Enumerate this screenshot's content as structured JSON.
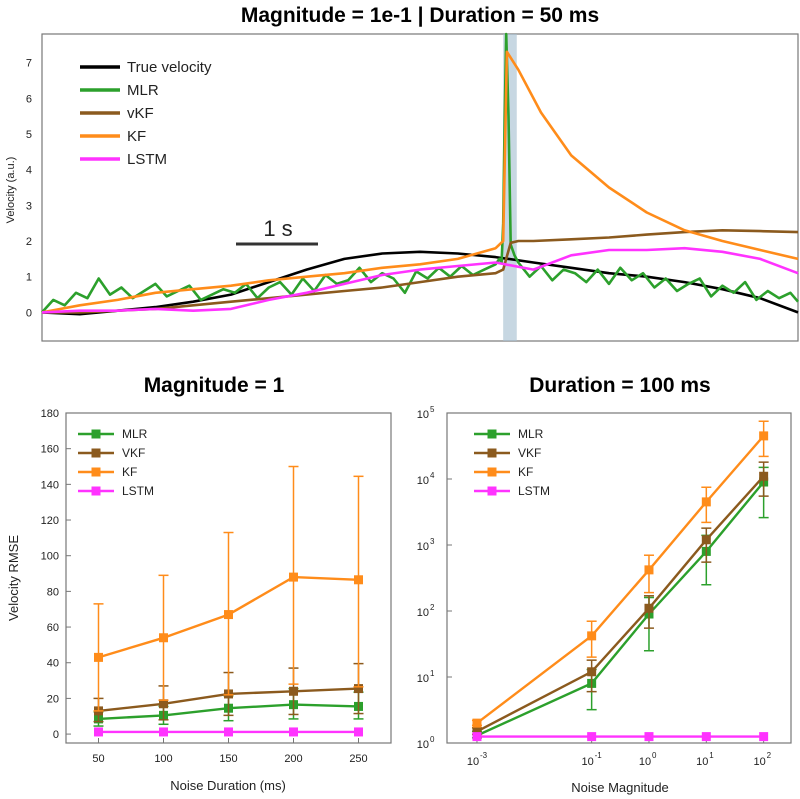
{
  "chart_data": [
    {
      "type": "line",
      "title": "Magnitude = 1e-1 | Duration = 50 ms",
      "ylabel": "Velocity (a.u.)",
      "xlabel": "",
      "ylim": [
        -0.8,
        7.8
      ],
      "xlim": [
        0,
        10
      ],
      "yticks": [
        "0",
        "1",
        "2",
        "3",
        "4",
        "5",
        "6",
        "7"
      ],
      "scalebar_label": "1 s",
      "noise_window": [
        6.1,
        6.28
      ],
      "legend_position": "top-left",
      "series": [
        {
          "name": "True velocity",
          "color": "#000000",
          "x": [
            0,
            0.5,
            1,
            1.5,
            2,
            2.5,
            3,
            3.5,
            4,
            4.5,
            5,
            5.5,
            6,
            6.5,
            7,
            7.5,
            8,
            8.5,
            9,
            9.5,
            10
          ],
          "values": [
            0,
            -0.05,
            0.05,
            0.15,
            0.3,
            0.5,
            0.85,
            1.2,
            1.5,
            1.65,
            1.7,
            1.65,
            1.55,
            1.4,
            1.25,
            1.1,
            1.0,
            0.85,
            0.65,
            0.4,
            0
          ]
        },
        {
          "name": "MLR",
          "color": "#2ca02c",
          "x": [
            0,
            0.15,
            0.3,
            0.45,
            0.6,
            0.75,
            0.9,
            1.05,
            1.2,
            1.35,
            1.5,
            1.65,
            1.8,
            1.95,
            2.1,
            2.25,
            2.4,
            2.55,
            2.7,
            2.85,
            3.0,
            3.15,
            3.3,
            3.45,
            3.6,
            3.75,
            3.9,
            4.05,
            4.2,
            4.35,
            4.5,
            4.65,
            4.8,
            4.95,
            5.1,
            5.25,
            5.4,
            5.55,
            5.7,
            5.85,
            6.0,
            6.05,
            6.08,
            6.1,
            6.12,
            6.14,
            6.17,
            6.2,
            6.25,
            6.3,
            6.45,
            6.6,
            6.75,
            6.9,
            7.05,
            7.2,
            7.35,
            7.5,
            7.65,
            7.8,
            7.95,
            8.1,
            8.25,
            8.4,
            8.55,
            8.7,
            8.85,
            9.0,
            9.15,
            9.3,
            9.45,
            9.6,
            9.75,
            9.9,
            10
          ],
          "values": [
            0,
            0.35,
            0.2,
            0.55,
            0.4,
            0.95,
            0.5,
            0.7,
            0.4,
            0.6,
            0.8,
            0.45,
            0.6,
            0.75,
            0.35,
            0.5,
            0.65,
            0.55,
            0.8,
            0.4,
            0.7,
            0.85,
            0.5,
            0.95,
            0.6,
            1.05,
            0.8,
            0.9,
            1.25,
            0.85,
            1.1,
            0.95,
            0.55,
            1.15,
            0.95,
            1.25,
            1.0,
            1.3,
            1.05,
            1.2,
            1.35,
            1.5,
            1.4,
            2.5,
            5.5,
            7.8,
            5.5,
            1.9,
            1.6,
            1.4,
            1.0,
            1.3,
            0.9,
            1.2,
            1.1,
            0.85,
            1.2,
            0.8,
            1.25,
            0.9,
            1.1,
            0.7,
            0.95,
            0.6,
            0.8,
            0.95,
            0.45,
            0.75,
            0.55,
            0.85,
            0.35,
            0.6,
            0.4,
            0.55,
            0.3
          ]
        },
        {
          "name": "vKF",
          "color": "#8b5a1e",
          "x": [
            0,
            0.5,
            1,
            1.5,
            2,
            2.5,
            3,
            3.5,
            4,
            4.5,
            5,
            5.5,
            6,
            6.1,
            6.2,
            6.3,
            6.5,
            7,
            7.5,
            8,
            8.5,
            9,
            9.5,
            10
          ],
          "values": [
            0,
            0,
            0.05,
            0.1,
            0.2,
            0.3,
            0.4,
            0.5,
            0.6,
            0.7,
            0.85,
            1.0,
            1.1,
            1.2,
            1.95,
            2.0,
            2.0,
            2.05,
            2.1,
            2.18,
            2.25,
            2.3,
            2.28,
            2.25
          ]
        },
        {
          "name": "KF",
          "color": "#ff8c1a",
          "x": [
            0,
            0.5,
            1,
            1.5,
            2,
            2.5,
            3,
            3.5,
            4,
            4.5,
            5,
            5.5,
            6,
            6.1,
            6.15,
            6.3,
            6.6,
            7,
            7.5,
            8,
            8.5,
            9,
            9.5,
            10
          ],
          "values": [
            0,
            0.2,
            0.35,
            0.55,
            0.65,
            0.75,
            0.9,
            1.0,
            1.1,
            1.25,
            1.35,
            1.5,
            1.8,
            2.0,
            7.3,
            6.8,
            5.6,
            4.4,
            3.5,
            2.8,
            2.3,
            2.0,
            1.75,
            1.5
          ]
        },
        {
          "name": "LSTM",
          "color": "#ff33ff",
          "x": [
            0,
            0.5,
            1,
            1.5,
            2,
            2.5,
            3,
            3.5,
            4,
            4.5,
            5,
            5.5,
            6,
            6.5,
            7,
            7.5,
            8,
            8.5,
            9,
            9.5,
            10
          ],
          "values": [
            0,
            0.05,
            0.05,
            0.1,
            0.05,
            0.1,
            0.35,
            0.55,
            0.8,
            1.05,
            1.2,
            1.3,
            1.4,
            1.2,
            1.6,
            1.75,
            1.75,
            1.8,
            1.7,
            1.5,
            1.1
          ]
        }
      ]
    },
    {
      "type": "line",
      "title": "Magnitude = 1",
      "xlabel": "Noise Duration (ms)",
      "ylabel": "Velocity RMSE",
      "ylim": [
        -5,
        180
      ],
      "xlim": [
        25,
        275
      ],
      "categories": [
        "50",
        "100",
        "150",
        "200",
        "250"
      ],
      "yticks": [
        "0",
        "20",
        "40",
        "60",
        "80",
        "100",
        "120",
        "140",
        "160",
        "180"
      ],
      "legend_position": "top-left",
      "series": [
        {
          "name": "MLR",
          "color": "#2ca02c",
          "x": [
            50,
            100,
            150,
            200,
            250
          ],
          "values": [
            8.5,
            10.5,
            14.5,
            16.5,
            15.5
          ],
          "err_low": [
            4,
            5,
            7,
            8,
            7
          ],
          "err_high": [
            4,
            5,
            7,
            9,
            8
          ]
        },
        {
          "name": "VKF",
          "color": "#8b5a1e",
          "x": [
            50,
            100,
            150,
            200,
            250
          ],
          "values": [
            13,
            17,
            22.5,
            24,
            25.5
          ],
          "err_low": [
            6,
            9,
            12,
            13,
            14
          ],
          "err_high": [
            7,
            10,
            12,
            13,
            14
          ]
        },
        {
          "name": "KF",
          "color": "#ff8c1a",
          "x": [
            50,
            100,
            150,
            200,
            250
          ],
          "values": [
            43,
            54,
            67,
            88,
            86.5
          ],
          "err_low": [
            30,
            35,
            45,
            60,
            60
          ],
          "err_high": [
            30,
            35,
            46,
            62,
            58
          ]
        },
        {
          "name": "LSTM",
          "color": "#ff33ff",
          "x": [
            50,
            100,
            150,
            200,
            250
          ],
          "values": [
            1.2,
            1.2,
            1.2,
            1.2,
            1.2
          ],
          "err_low": [
            0,
            0,
            0,
            0,
            0
          ],
          "err_high": [
            0,
            0,
            0,
            0,
            0
          ]
        }
      ]
    },
    {
      "type": "line",
      "title": "Duration = 100 ms",
      "xlabel": "Noise Magnitude",
      "ylabel": "",
      "log_x": true,
      "log_y": true,
      "ylim": [
        1,
        100000
      ],
      "xlim": [
        0.0003,
        300
      ],
      "xtick_values": [
        0.001,
        0.1,
        1,
        10,
        100
      ],
      "xticks": [
        {
          "base": "10",
          "exp": "-3"
        },
        {
          "base": "10",
          "exp": "-1"
        },
        {
          "base": "10",
          "exp": "0"
        },
        {
          "base": "10",
          "exp": "1"
        },
        {
          "base": "10",
          "exp": "2"
        }
      ],
      "yticks": [
        {
          "base": "10",
          "exp": "0"
        },
        {
          "base": "10",
          "exp": "1"
        },
        {
          "base": "10",
          "exp": "2"
        },
        {
          "base": "10",
          "exp": "3"
        },
        {
          "base": "10",
          "exp": "4"
        },
        {
          "base": "10",
          "exp": "5"
        }
      ],
      "legend_position": "top-left",
      "series": [
        {
          "name": "MLR",
          "color": "#2ca02c",
          "x": [
            0.001,
            0.1,
            1,
            10,
            100
          ],
          "values": [
            1.3,
            8,
            90,
            800,
            9000
          ],
          "err_low": [
            1.2,
            3.2,
            25,
            250,
            2600
          ],
          "err_high": [
            1.5,
            13,
            160,
            1400,
            15000
          ]
        },
        {
          "name": "VKF",
          "color": "#8b5a1e",
          "x": [
            0.001,
            0.1,
            1,
            10,
            100
          ],
          "values": [
            1.5,
            12,
            110,
            1200,
            11000
          ],
          "err_low": [
            1.35,
            6,
            55,
            550,
            5500
          ],
          "err_high": [
            1.7,
            18,
            170,
            1800,
            18000
          ]
        },
        {
          "name": "KF",
          "color": "#ff8c1a",
          "x": [
            0.001,
            0.1,
            1,
            10,
            100
          ],
          "values": [
            2,
            42,
            420,
            4500,
            45000
          ],
          "err_low": [
            1.85,
            20,
            190,
            2200,
            22000
          ],
          "err_high": [
            2.2,
            70,
            700,
            7500,
            75000
          ]
        },
        {
          "name": "LSTM",
          "color": "#ff33ff",
          "x": [
            0.001,
            0.1,
            1,
            10,
            100
          ],
          "values": [
            1.25,
            1.25,
            1.25,
            1.25,
            1.25
          ],
          "err_low": [
            1.25,
            1.25,
            1.25,
            1.25,
            1.25
          ],
          "err_high": [
            1.25,
            1.25,
            1.25,
            1.25,
            1.25
          ]
        }
      ]
    }
  ]
}
